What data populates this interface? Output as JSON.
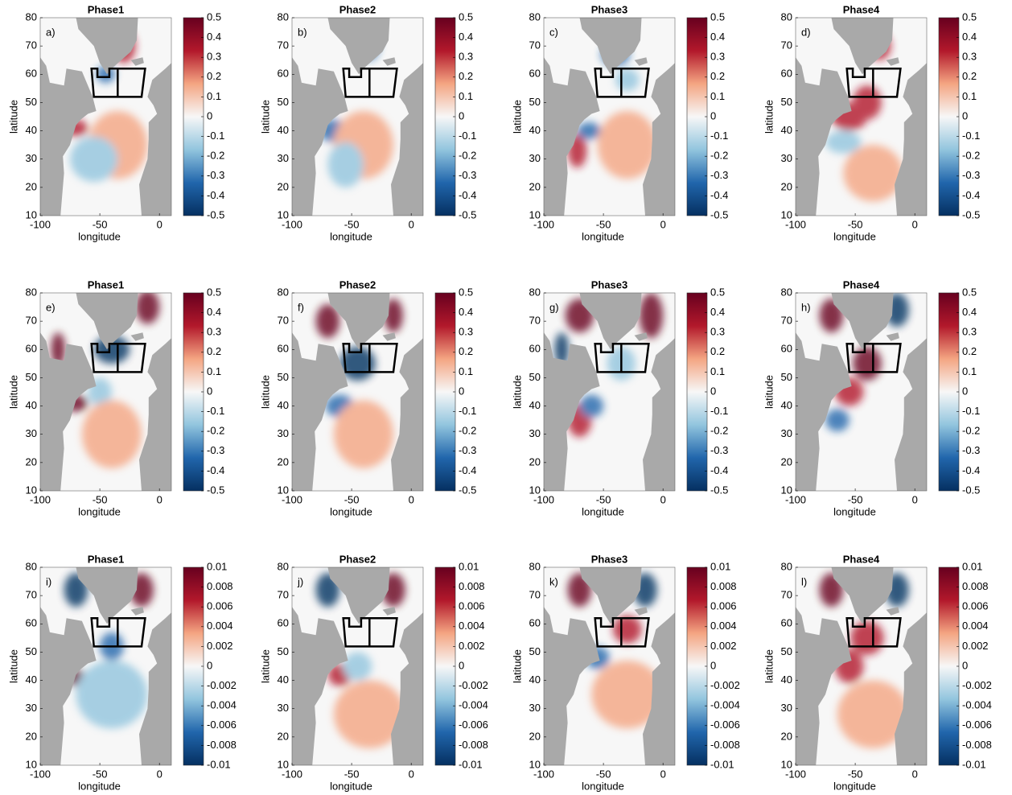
{
  "chart_data": [
    {
      "type": "map",
      "title": "Phase1",
      "panel_label": "a)",
      "xlabel": "longitude",
      "ylabel": "latitude",
      "xlim": [
        -100,
        10
      ],
      "ylim": [
        10,
        80
      ],
      "xticks": [
        -100,
        -50,
        0
      ],
      "yticks": [
        10,
        20,
        30,
        40,
        50,
        60,
        70,
        80
      ],
      "clim": [
        -0.5,
        0.5
      ],
      "cticks": [
        -0.5,
        -0.4,
        -0.3,
        -0.2,
        -0.1,
        0,
        0.1,
        0.2,
        0.3,
        0.4,
        0.5
      ],
      "colormap": [
        "#053061",
        "#2166ac",
        "#92c5de",
        "#f7f7f7",
        "#f4a582",
        "#b2182b",
        "#67001f"
      ]
    },
    {
      "type": "map",
      "title": "Phase2",
      "panel_label": "b)",
      "xlabel": "longitude",
      "ylabel": "latitude",
      "xlim": [
        -100,
        10
      ],
      "ylim": [
        10,
        80
      ],
      "xticks": [
        -100,
        -50,
        0
      ],
      "yticks": [
        10,
        20,
        30,
        40,
        50,
        60,
        70,
        80
      ],
      "clim": [
        -0.5,
        0.5
      ],
      "cticks": [
        -0.5,
        -0.4,
        -0.3,
        -0.2,
        -0.1,
        0,
        0.1,
        0.2,
        0.3,
        0.4,
        0.5
      ],
      "colormap": [
        "#053061",
        "#2166ac",
        "#92c5de",
        "#f7f7f7",
        "#f4a582",
        "#b2182b",
        "#67001f"
      ]
    },
    {
      "type": "map",
      "title": "Phase3",
      "panel_label": "c)",
      "xlabel": "longitude",
      "ylabel": "latitude",
      "xlim": [
        -100,
        10
      ],
      "ylim": [
        10,
        80
      ],
      "xticks": [
        -100,
        -50,
        0
      ],
      "yticks": [
        10,
        20,
        30,
        40,
        50,
        60,
        70,
        80
      ],
      "clim": [
        -0.5,
        0.5
      ],
      "cticks": [
        -0.5,
        -0.4,
        -0.3,
        -0.2,
        -0.1,
        0,
        0.1,
        0.2,
        0.3,
        0.4,
        0.5
      ],
      "colormap": [
        "#053061",
        "#2166ac",
        "#92c5de",
        "#f7f7f7",
        "#f4a582",
        "#b2182b",
        "#67001f"
      ]
    },
    {
      "type": "map",
      "title": "Phase4",
      "panel_label": "d)",
      "xlabel": "longitude",
      "ylabel": "latitude",
      "xlim": [
        -100,
        10
      ],
      "ylim": [
        10,
        80
      ],
      "xticks": [
        -100,
        -50,
        0
      ],
      "yticks": [
        10,
        20,
        30,
        40,
        50,
        60,
        70,
        80
      ],
      "clim": [
        -0.5,
        0.5
      ],
      "cticks": [
        -0.5,
        -0.4,
        -0.3,
        -0.2,
        -0.1,
        0,
        0.1,
        0.2,
        0.3,
        0.4,
        0.5
      ],
      "colormap": [
        "#053061",
        "#2166ac",
        "#92c5de",
        "#f7f7f7",
        "#f4a582",
        "#b2182b",
        "#67001f"
      ]
    },
    {
      "type": "map",
      "title": "Phase1",
      "panel_label": "e)",
      "xlabel": "longitude",
      "ylabel": "latitude",
      "xlim": [
        -100,
        10
      ],
      "ylim": [
        10,
        80
      ],
      "xticks": [
        -100,
        -50,
        0
      ],
      "yticks": [
        10,
        20,
        30,
        40,
        50,
        60,
        70,
        80
      ],
      "clim": [
        -0.5,
        0.5
      ],
      "cticks": [
        -0.5,
        -0.4,
        -0.3,
        -0.2,
        -0.1,
        0,
        0.1,
        0.2,
        0.3,
        0.4,
        0.5
      ],
      "colormap": [
        "#053061",
        "#2166ac",
        "#92c5de",
        "#f7f7f7",
        "#f4a582",
        "#b2182b",
        "#67001f"
      ]
    },
    {
      "type": "map",
      "title": "Phase2",
      "panel_label": "f)",
      "xlabel": "longitude",
      "ylabel": "latitude",
      "xlim": [
        -100,
        10
      ],
      "ylim": [
        10,
        80
      ],
      "xticks": [
        -100,
        -50,
        0
      ],
      "yticks": [
        10,
        20,
        30,
        40,
        50,
        60,
        70,
        80
      ],
      "clim": [
        -0.5,
        0.5
      ],
      "cticks": [
        -0.5,
        -0.4,
        -0.3,
        -0.2,
        -0.1,
        0,
        0.1,
        0.2,
        0.3,
        0.4,
        0.5
      ],
      "colormap": [
        "#053061",
        "#2166ac",
        "#92c5de",
        "#f7f7f7",
        "#f4a582",
        "#b2182b",
        "#67001f"
      ]
    },
    {
      "type": "map",
      "title": "Phase3",
      "panel_label": "g)",
      "xlabel": "longitude",
      "ylabel": "latitude",
      "xlim": [
        -100,
        10
      ],
      "ylim": [
        10,
        80
      ],
      "xticks": [
        -100,
        -50,
        0
      ],
      "yticks": [
        10,
        20,
        30,
        40,
        50,
        60,
        70,
        80
      ],
      "clim": [
        -0.5,
        0.5
      ],
      "cticks": [
        -0.5,
        -0.4,
        -0.3,
        -0.2,
        -0.1,
        0,
        0.1,
        0.2,
        0.3,
        0.4,
        0.5
      ],
      "colormap": [
        "#053061",
        "#2166ac",
        "#92c5de",
        "#f7f7f7",
        "#f4a582",
        "#b2182b",
        "#67001f"
      ]
    },
    {
      "type": "map",
      "title": "Phase4",
      "panel_label": "h)",
      "xlabel": "longitude",
      "ylabel": "latitude",
      "xlim": [
        -100,
        10
      ],
      "ylim": [
        10,
        80
      ],
      "xticks": [
        -100,
        -50,
        0
      ],
      "yticks": [
        10,
        20,
        30,
        40,
        50,
        60,
        70,
        80
      ],
      "clim": [
        -0.5,
        0.5
      ],
      "cticks": [
        -0.5,
        -0.4,
        -0.3,
        -0.2,
        -0.1,
        0,
        0.1,
        0.2,
        0.3,
        0.4,
        0.5
      ],
      "colormap": [
        "#053061",
        "#2166ac",
        "#92c5de",
        "#f7f7f7",
        "#f4a582",
        "#b2182b",
        "#67001f"
      ]
    },
    {
      "type": "map",
      "title": "Phase1",
      "panel_label": "i)",
      "xlabel": "longitude",
      "ylabel": "latitude",
      "xlim": [
        -100,
        10
      ],
      "ylim": [
        10,
        80
      ],
      "xticks": [
        -100,
        -50,
        0
      ],
      "yticks": [
        10,
        20,
        30,
        40,
        50,
        60,
        70,
        80
      ],
      "clim": [
        -0.01,
        0.01
      ],
      "cticks": [
        -0.01,
        -0.008,
        -0.006,
        -0.004,
        -0.002,
        0,
        0.002,
        0.004,
        0.006,
        0.008,
        0.01
      ],
      "colormap": [
        "#053061",
        "#2166ac",
        "#92c5de",
        "#f7f7f7",
        "#f4a582",
        "#b2182b",
        "#67001f"
      ]
    },
    {
      "type": "map",
      "title": "Phase2",
      "panel_label": "j)",
      "xlabel": "longitude",
      "ylabel": "latitude",
      "xlim": [
        -100,
        10
      ],
      "ylim": [
        10,
        80
      ],
      "xticks": [
        -100,
        -50,
        0
      ],
      "yticks": [
        10,
        20,
        30,
        40,
        50,
        60,
        70,
        80
      ],
      "clim": [
        -0.01,
        0.01
      ],
      "cticks": [
        -0.01,
        -0.008,
        -0.006,
        -0.004,
        -0.002,
        0,
        0.002,
        0.004,
        0.006,
        0.008,
        0.01
      ],
      "colormap": [
        "#053061",
        "#2166ac",
        "#92c5de",
        "#f7f7f7",
        "#f4a582",
        "#b2182b",
        "#67001f"
      ]
    },
    {
      "type": "map",
      "title": "Phase3",
      "panel_label": "k)",
      "xlabel": "longitude",
      "ylabel": "latitude",
      "xlim": [
        -100,
        10
      ],
      "ylim": [
        10,
        80
      ],
      "xticks": [
        -100,
        -50,
        0
      ],
      "yticks": [
        10,
        20,
        30,
        40,
        50,
        60,
        70,
        80
      ],
      "clim": [
        -0.01,
        0.01
      ],
      "cticks": [
        -0.01,
        -0.008,
        -0.006,
        -0.004,
        -0.002,
        0,
        0.002,
        0.004,
        0.006,
        0.008,
        0.01
      ],
      "colormap": [
        "#053061",
        "#2166ac",
        "#92c5de",
        "#f7f7f7",
        "#f4a582",
        "#b2182b",
        "#67001f"
      ]
    },
    {
      "type": "map",
      "title": "Phase4",
      "panel_label": "l)",
      "xlabel": "longitude",
      "ylabel": "latitude",
      "xlim": [
        -100,
        10
      ],
      "ylim": [
        10,
        80
      ],
      "xticks": [
        -100,
        -50,
        0
      ],
      "yticks": [
        10,
        20,
        30,
        40,
        50,
        60,
        70,
        80
      ],
      "clim": [
        -0.01,
        0.01
      ],
      "cticks": [
        -0.01,
        -0.008,
        -0.006,
        -0.004,
        -0.002,
        0,
        0.002,
        0.004,
        0.006,
        0.008,
        0.01
      ],
      "colormap": [
        "#053061",
        "#2166ac",
        "#92c5de",
        "#f7f7f7",
        "#f4a582",
        "#b2182b",
        "#67001f"
      ]
    }
  ]
}
